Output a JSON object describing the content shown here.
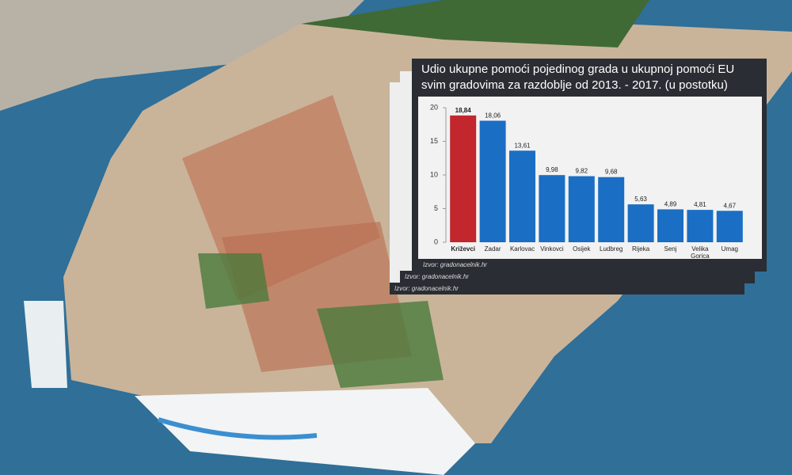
{
  "chart_data": {
    "type": "bar",
    "title": "Udio ukupne pomoći pojedinog grada u ukupnoj pomoći EU svim gradovima za razdoblje od 2013. - 2017. (u postotku)",
    "source": "Izvor: gradonacelnik.hr",
    "categories": [
      "Križevci",
      "Zadar",
      "Karlovac",
      "Vinkovci",
      "Osijek",
      "Ludbreg",
      "Rijeka",
      "Senj",
      "Velika Gorica",
      "Umag"
    ],
    "values": [
      18.84,
      18.06,
      13.61,
      9.98,
      9.82,
      9.68,
      5.63,
      4.89,
      4.81,
      4.67
    ],
    "value_labels": [
      "18,84",
      "18,06",
      "13,61",
      "9,98",
      "9,82",
      "9,68",
      "5,63",
      "4,89",
      "4,81",
      "4,67"
    ],
    "colors": [
      "#c1272d",
      "#1a6ec4",
      "#1a6ec4",
      "#1a6ec4",
      "#1a6ec4",
      "#1a6ec4",
      "#1a6ec4",
      "#1a6ec4",
      "#1a6ec4",
      "#1a6ec4"
    ],
    "ylim": [
      0,
      20
    ],
    "yticks": [
      0,
      5,
      10,
      15,
      20
    ],
    "grid": false
  }
}
